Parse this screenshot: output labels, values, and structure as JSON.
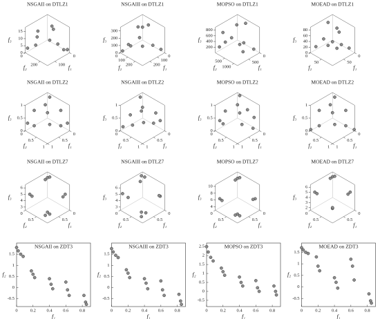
{
  "chart_data": [
    {
      "type": "scatter3d",
      "title": "NSGAII on DTLZ1",
      "xlabel": "f₁",
      "ylabel": "f₂",
      "zlabel": "f₃",
      "xlim": [
        0,
        150
      ],
      "ylim": [
        0,
        300
      ],
      "zlim": [
        0,
        18
      ],
      "xticks": [
        0,
        100
      ],
      "yticks": [
        0,
        200
      ],
      "zticks": [
        0,
        5,
        10,
        15
      ],
      "color": "#8c8c8c",
      "x": [
        5,
        30,
        60,
        100,
        140,
        20,
        80,
        10,
        50,
        120
      ],
      "y": [
        280,
        200,
        150,
        60,
        10,
        100,
        30,
        240,
        180,
        80
      ],
      "z": [
        2,
        5,
        8,
        10,
        3,
        14,
        12,
        1,
        16,
        6
      ]
    },
    {
      "type": "scatter3d",
      "title": "NSGAIII on DTLZ1",
      "xlabel": "f₁",
      "ylabel": "f₂",
      "zlabel": "f₃",
      "xlim": [
        0,
        300
      ],
      "ylim": [
        0,
        300
      ],
      "zlim": [
        0,
        350
      ],
      "xticks": [
        0,
        100,
        200
      ],
      "yticks": [
        0,
        100,
        200
      ],
      "zticks": [
        0,
        100,
        200,
        300
      ],
      "color": "#8c8c8c",
      "x": [
        10,
        60,
        120,
        200,
        280,
        40,
        150,
        90,
        250,
        20
      ],
      "y": [
        260,
        200,
        80,
        40,
        10,
        120,
        150,
        30,
        60,
        20
      ],
      "z": [
        30,
        80,
        150,
        60,
        20,
        300,
        90,
        250,
        120,
        200
      ]
    },
    {
      "type": "scatter3d",
      "title": "MOPSO on DTLZ1",
      "xlabel": "f₁",
      "ylabel": "f₂",
      "zlabel": "f₃",
      "xlim": [
        0,
        1000
      ],
      "ylim": [
        0,
        1200
      ],
      "zlim": [
        0,
        900
      ],
      "xticks": [
        0,
        500
      ],
      "yticks": [
        500,
        1000
      ],
      "zticks": [
        200,
        400,
        600,
        800
      ],
      "color": "#8c8c8c",
      "x": [
        100,
        300,
        600,
        900,
        200,
        500,
        50,
        800,
        400,
        700
      ],
      "y": [
        1000,
        700,
        400,
        100,
        200,
        900,
        500,
        300,
        600,
        50
      ],
      "z": [
        100,
        300,
        500,
        200,
        700,
        150,
        800,
        400,
        250,
        600
      ]
    },
    {
      "type": "scatter3d",
      "title": "MOEAD on DTLZ1",
      "xlabel": "f₁",
      "ylabel": "f₂",
      "zlabel": "f₃",
      "xlim": [
        0,
        100
      ],
      "ylim": [
        0,
        100
      ],
      "zlim": [
        0,
        90
      ],
      "xticks": [
        0,
        50
      ],
      "yticks": [
        0,
        50
      ],
      "zticks": [
        0,
        20,
        40,
        60,
        80
      ],
      "color": "#8c8c8c",
      "x": [
        5,
        20,
        40,
        60,
        80,
        30,
        10,
        50,
        70,
        15
      ],
      "y": [
        80,
        60,
        40,
        20,
        5,
        10,
        30,
        70,
        50,
        45
      ],
      "z": [
        10,
        20,
        30,
        40,
        15,
        80,
        60,
        25,
        35,
        55
      ]
    },
    {
      "type": "scatter3d",
      "title": "NSGAII on DTLZ2",
      "xlabel": "f₁",
      "ylabel": "f₂",
      "zlabel": "f₃",
      "xlim": [
        0,
        1
      ],
      "ylim": [
        0,
        1
      ],
      "zlim": [
        0,
        1
      ],
      "xticks": [
        0,
        0.5,
        1
      ],
      "yticks": [
        0,
        0.5,
        1
      ],
      "zticks": [
        0,
        0.5,
        1
      ],
      "color": "#8c8c8c",
      "x": [
        0.1,
        0.5,
        0.9,
        0.3,
        0.7,
        0.1,
        0.6,
        0.95,
        0.05,
        0.4
      ],
      "y": [
        0.2,
        0.5,
        0.3,
        0.9,
        0.1,
        0.7,
        0.7,
        0.05,
        0.95,
        0.3
      ],
      "z": [
        0.97,
        0.71,
        0.3,
        0.3,
        0.7,
        0.7,
        0.4,
        0.3,
        0.3,
        0.87
      ]
    },
    {
      "type": "scatter3d",
      "title": "NSGAIII on DTLZ2",
      "xlabel": "f₁",
      "ylabel": "f₂",
      "zlabel": "f₃",
      "xlim": [
        0,
        1
      ],
      "ylim": [
        0,
        1
      ],
      "zlim": [
        0,
        1
      ],
      "xticks": [
        0,
        0.5,
        1
      ],
      "yticks": [
        0,
        0.5,
        1
      ],
      "zticks": [
        0,
        0.5,
        1
      ],
      "color": "#8c8c8c",
      "x": [
        0.2,
        0.5,
        0.85,
        0.35,
        0.75,
        0.15,
        0.6,
        0.98,
        0.1,
        0.4
      ],
      "y": [
        0.1,
        0.45,
        0.4,
        0.85,
        0.2,
        0.75,
        0.65,
        0.1,
        0.9,
        0.4
      ],
      "z": [
        0.97,
        0.75,
        0.35,
        0.4,
        0.6,
        0.65,
        0.45,
        0.2,
        0.4,
        0.82
      ]
    },
    {
      "type": "scatter3d",
      "title": "MOPSO on DTLZ2",
      "xlabel": "f₁",
      "ylabel": "f₂",
      "zlabel": "f₃",
      "xlim": [
        0,
        1
      ],
      "ylim": [
        0,
        1
      ],
      "zlim": [
        0,
        1
      ],
      "xticks": [
        0,
        0.5,
        1
      ],
      "yticks": [
        0,
        0.5,
        1
      ],
      "zticks": [
        0,
        0.5,
        1
      ],
      "color": "#8c8c8c",
      "x": [
        0.05,
        0.45,
        0.9,
        0.25,
        0.7,
        0.2,
        0.55,
        0.9,
        0.1,
        0.35
      ],
      "y": [
        0.15,
        0.55,
        0.25,
        0.95,
        0.15,
        0.65,
        0.75,
        0.1,
        0.85,
        0.35
      ],
      "z": [
        0.98,
        0.7,
        0.35,
        0.2,
        0.7,
        0.75,
        0.4,
        0.4,
        0.5,
        0.87
      ]
    },
    {
      "type": "scatter3d",
      "title": "MOEAD on DTLZ2",
      "xlabel": "f₁",
      "ylabel": "f₂",
      "zlabel": "f₃",
      "xlim": [
        0,
        1
      ],
      "ylim": [
        0,
        1
      ],
      "zlim": [
        0,
        1
      ],
      "xticks": [
        0,
        0.5,
        1
      ],
      "yticks": [
        0,
        0.5,
        1
      ],
      "zticks": [
        0,
        0.5,
        1
      ],
      "color": "#8c8c8c",
      "x": [
        0.1,
        0.5,
        0.9,
        0.3,
        0.7,
        0.1,
        0.6,
        0.99,
        0.01,
        0.4
      ],
      "y": [
        0.2,
        0.5,
        0.3,
        0.9,
        0.1,
        0.7,
        0.7,
        0.01,
        0.99,
        0.3
      ],
      "z": [
        0.97,
        0.71,
        0.3,
        0.3,
        0.7,
        0.7,
        0.4,
        0.05,
        0.05,
        0.87
      ]
    },
    {
      "type": "scatter3d",
      "title": "NSGAII on DTLZ7",
      "xlabel": "f₁",
      "ylabel": "f₂",
      "zlabel": "f₃",
      "xlim": [
        0,
        1
      ],
      "ylim": [
        0,
        1
      ],
      "zlim": [
        2.5,
        6.5
      ],
      "xticks": [
        0,
        0.5
      ],
      "yticks": [
        0,
        0.5
      ],
      "zticks": [
        3,
        4,
        5,
        6
      ],
      "color": "#8c8c8c",
      "x": [
        0.05,
        0.1,
        0.85,
        0.8,
        0.05,
        0.1,
        0.85,
        0.8,
        0.9,
        0.0
      ],
      "y": [
        0.05,
        0.0,
        0.05,
        0.1,
        0.85,
        0.8,
        0.85,
        0.9,
        0.8,
        0.1
      ],
      "z": [
        5.8,
        5.5,
        4.8,
        4.5,
        4.8,
        4.4,
        3.6,
        3.3,
        3.1,
        5.9
      ]
    },
    {
      "type": "scatter3d",
      "title": "NSGAIII on DTLZ7",
      "xlabel": "f₁",
      "ylabel": "f₂",
      "zlabel": "f₃",
      "xlim": [
        0,
        1
      ],
      "ylim": [
        0,
        1
      ],
      "zlim": [
        2.5,
        6.5
      ],
      "xticks": [
        0,
        0.5
      ],
      "yticks": [
        0,
        0.5
      ],
      "zticks": [
        3,
        4,
        5,
        6
      ],
      "color": "#8c8c8c",
      "x": [
        0.0,
        0.15,
        0.9,
        0.8,
        0.1,
        0.05,
        0.85,
        0.75,
        0.9,
        0.05
      ],
      "y": [
        0.1,
        0.05,
        0.0,
        0.15,
        0.9,
        0.8,
        0.8,
        0.9,
        0.85,
        0.0
      ],
      "z": [
        5.9,
        5.4,
        4.9,
        4.4,
        4.7,
        4.5,
        3.5,
        3.4,
        3.0,
        6.0
      ]
    },
    {
      "type": "scatter3d",
      "title": "MOPSO on DTLZ7",
      "xlabel": "f₁",
      "ylabel": "f₂",
      "zlabel": "f₃",
      "xlim": [
        0,
        1
      ],
      "ylim": [
        0,
        1
      ],
      "zlim": [
        3,
        10.5
      ],
      "xticks": [
        0,
        0.5
      ],
      "yticks": [
        0,
        0.5
      ],
      "zticks": [
        4,
        6,
        8,
        10
      ],
      "color": "#8c8c8c",
      "x": [
        0.05,
        0.1,
        0.85,
        0.8,
        0.05,
        0.1,
        0.85,
        0.8,
        0.9,
        0.0
      ],
      "y": [
        0.05,
        0.0,
        0.05,
        0.1,
        0.85,
        0.8,
        0.85,
        0.9,
        0.8,
        0.1
      ],
      "z": [
        9,
        8.5,
        6,
        5.5,
        6,
        5.8,
        4.5,
        4,
        4.2,
        9.2
      ]
    },
    {
      "type": "scatter3d",
      "title": "MOEAD on DTLZ7",
      "xlabel": "f₁",
      "ylabel": "f₂",
      "zlabel": "f₃",
      "xlim": [
        0,
        1
      ],
      "ylim": [
        0,
        1
      ],
      "zlim": [
        1.5,
        6.5
      ],
      "xticks": [
        0,
        0.5
      ],
      "yticks": [
        0,
        0.5
      ],
      "zticks": [
        2,
        3,
        4,
        5,
        6
      ],
      "color": "#8c8c8c",
      "x": [
        0.05,
        0.1,
        0.85,
        0.8,
        0.05,
        0.1,
        0.85,
        0.6,
        0.5,
        0.0
      ],
      "y": [
        0.05,
        0.0,
        0.05,
        0.1,
        0.85,
        0.8,
        0.85,
        0.6,
        0.5,
        0.1
      ],
      "z": [
        5.8,
        5.5,
        4.8,
        4.5,
        4.8,
        4.4,
        3.6,
        2.5,
        2.0,
        5.9
      ]
    },
    {
      "type": "scatter",
      "title": "NSGAII on ZDT3",
      "xlabel": "f₁",
      "ylabel": "f₂",
      "xlim": [
        0,
        0.9
      ],
      "ylim": [
        -0.85,
        2
      ],
      "xticks": [
        0,
        0.2,
        0.4,
        0.6,
        0.8
      ],
      "yticks": [
        -0.5,
        0,
        0.5,
        1,
        1.5
      ],
      "color": "#8c8c8c",
      "x": [
        0,
        0.02,
        0.05,
        0.08,
        0.18,
        0.2,
        0.22,
        0.4,
        0.42,
        0.44,
        0.6,
        0.62,
        0.64,
        0.82,
        0.84,
        0.85
      ],
      "y": [
        1.8,
        1.65,
        1.5,
        1.4,
        0.75,
        0.6,
        0.45,
        0.4,
        0.15,
        -0.05,
        0.25,
        -0.1,
        -0.35,
        -0.35,
        -0.65,
        -0.75
      ]
    },
    {
      "type": "scatter",
      "title": "NSGAIII on ZDT3",
      "xlabel": "f₁",
      "ylabel": "f₂",
      "xlim": [
        0,
        0.9
      ],
      "ylim": [
        -0.85,
        2
      ],
      "xticks": [
        0,
        0.2,
        0.4,
        0.6,
        0.8
      ],
      "yticks": [
        -0.5,
        0,
        0.5,
        1,
        1.5
      ],
      "color": "#8c8c8c",
      "x": [
        0,
        0.02,
        0.05,
        0.08,
        0.18,
        0.2,
        0.22,
        0.4,
        0.42,
        0.44,
        0.6,
        0.62,
        0.64,
        0.82,
        0.84,
        0.85
      ],
      "y": [
        1.75,
        1.6,
        1.45,
        1.35,
        0.8,
        0.65,
        0.45,
        0.4,
        0.2,
        -0.05,
        0.3,
        -0.1,
        -0.35,
        -0.3,
        -0.6,
        -0.75
      ]
    },
    {
      "type": "scatter",
      "title": "MOPSO on ZDT3",
      "xlabel": "f₁",
      "ylabel": "f₂",
      "xlim": [
        0,
        0.9
      ],
      "ylim": [
        -0.85,
        2.7
      ],
      "xticks": [
        0,
        0.2,
        0.4,
        0.6,
        0.8
      ],
      "yticks": [
        -0.5,
        0,
        0.5,
        1,
        1.5,
        2,
        2.5
      ],
      "color": "#8c8c8c",
      "x": [
        0,
        0.02,
        0.05,
        0.08,
        0.18,
        0.2,
        0.22,
        0.4,
        0.42,
        0.44,
        0.6,
        0.62,
        0.64,
        0.82,
        0.84,
        0.85
      ],
      "y": [
        2.5,
        2.2,
        1.9,
        1.7,
        1.3,
        1.1,
        0.9,
        0.8,
        0.5,
        0.3,
        0.6,
        0.2,
        0.0,
        0.3,
        0.0,
        -0.2
      ]
    },
    {
      "type": "scatter",
      "title": "MOEAD on ZDT3",
      "xlabel": "f₁",
      "ylabel": "f₂",
      "xlim": [
        0,
        0.9
      ],
      "ylim": [
        -0.85,
        1.9
      ],
      "xticks": [
        0,
        0.2,
        0.4,
        0.6,
        0.8
      ],
      "yticks": [
        -0.5,
        0,
        0.5,
        1,
        1.5
      ],
      "color": "#8c8c8c",
      "x": [
        0,
        0.02,
        0.05,
        0.08,
        0.18,
        0.2,
        0.22,
        0.4,
        0.42,
        0.44,
        0.6,
        0.62,
        0.64,
        0.82,
        0.84,
        0.85
      ],
      "y": [
        1.7,
        1.6,
        1.5,
        1.45,
        1.3,
        0.9,
        0.7,
        0.4,
        0.2,
        -0.05,
        1.2,
        0.9,
        0.3,
        -0.3,
        -0.6,
        -0.7
      ]
    }
  ]
}
